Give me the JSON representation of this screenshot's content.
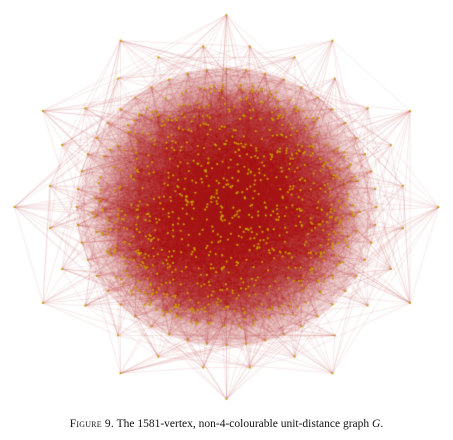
{
  "figure": {
    "label": "Figure 9.",
    "caption_text": " The 1581-vertex, non-4-colourable unit-distance graph ",
    "caption_symbol": "G",
    "caption_end": "."
  },
  "graph": {
    "vertex_count": 1581,
    "edge_color": "#b01818",
    "vertex_color": "#c8a000",
    "background": "#ffffff"
  }
}
